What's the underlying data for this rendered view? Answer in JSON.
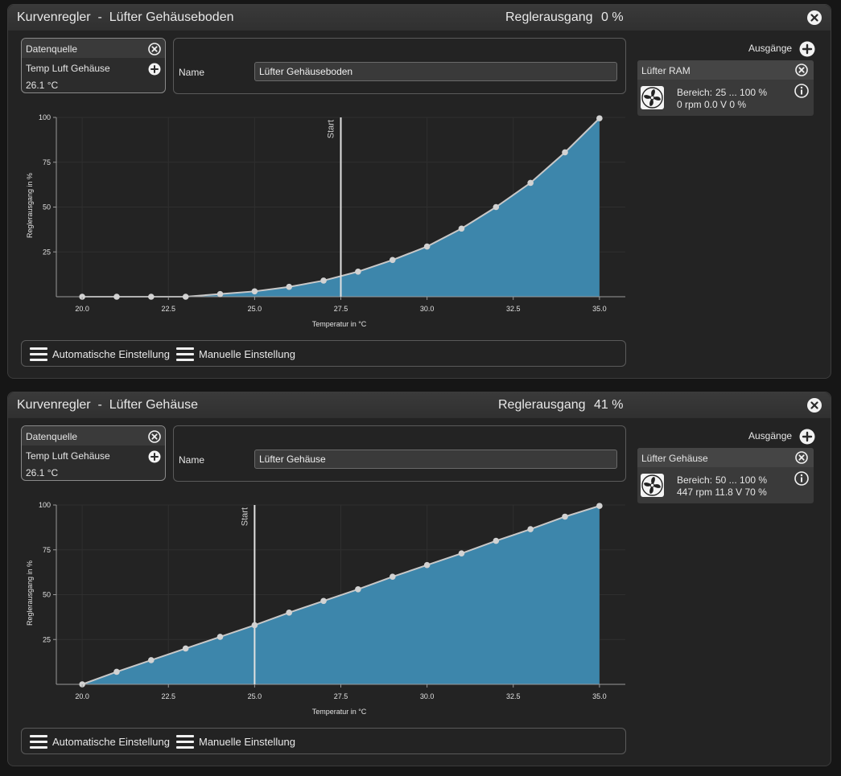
{
  "panels": [
    {
      "title": "Kurvenregler  -  Lüfter Gehäuseboden",
      "output_label": "Reglerausgang",
      "output_value": "0 %",
      "datasource": {
        "header": "Datenquelle",
        "sensor": "Temp Luft Gehäuse",
        "value": "26.1 °C"
      },
      "name_label": "Name",
      "name_value": "Lüfter Gehäuseboden",
      "outputs_label": "Ausgänge",
      "output_card": {
        "title": "Lüfter RAM",
        "range_label": "Bereich:",
        "range_value": "25 ... 100  %",
        "status": "0 rpm  0.0 V  0 %"
      },
      "buttons": {
        "auto": "Automatische Einstellung",
        "manual": "Manuelle Einstellung"
      },
      "chart_data": {
        "type": "area",
        "xlabel": "Temperatur in °C",
        "ylabel": "Reglerausgang in %",
        "xlim": [
          19.25,
          35.75
        ],
        "ylim": [
          0,
          100
        ],
        "x_ticks": [
          "20.0",
          "22.5",
          "25.0",
          "27.5",
          "30.0",
          "32.5",
          "35.0"
        ],
        "y_ticks": [
          "25",
          "50",
          "75",
          "100"
        ],
        "start_label": "Start",
        "start_x": 27.5,
        "x": [
          20,
          21,
          22,
          23,
          24,
          25,
          26,
          27,
          28,
          29,
          30,
          31,
          32,
          33,
          34,
          35
        ],
        "y": [
          0,
          0,
          0,
          0,
          1.5,
          3,
          5.5,
          9,
          14,
          20.5,
          28,
          38,
          50,
          63.5,
          80.5,
          99.5
        ],
        "fill_color": "#3d86ab",
        "line_color": "#c8c8c8"
      }
    },
    {
      "title": "Kurvenregler  -  Lüfter Gehäuse",
      "output_label": "Reglerausgang",
      "output_value": "41 %",
      "datasource": {
        "header": "Datenquelle",
        "sensor": "Temp Luft Gehäuse",
        "value": "26.1 °C"
      },
      "name_label": "Name",
      "name_value": "Lüfter Gehäuse",
      "outputs_label": "Ausgänge",
      "output_card": {
        "title": "Lüfter Gehäuse",
        "range_label": "Bereich:",
        "range_value": "50 ... 100  %",
        "status": "447 rpm  11.8 V  70 %"
      },
      "buttons": {
        "auto": "Automatische Einstellung",
        "manual": "Manuelle Einstellung"
      },
      "chart_data": {
        "type": "area",
        "xlabel": "Temperatur in °C",
        "ylabel": "Reglerausgang in %",
        "xlim": [
          19.25,
          35.75
        ],
        "ylim": [
          0,
          100
        ],
        "x_ticks": [
          "20.0",
          "22.5",
          "25.0",
          "27.5",
          "30.0",
          "32.5",
          "35.0"
        ],
        "y_ticks": [
          "25",
          "50",
          "75",
          "100"
        ],
        "start_label": "Start",
        "start_x": 25.0,
        "x": [
          20,
          21,
          22,
          23,
          24,
          25,
          26,
          27,
          28,
          29,
          30,
          31,
          32,
          33,
          34,
          35
        ],
        "y": [
          0,
          7,
          13.5,
          20,
          26.5,
          33,
          40,
          46.5,
          53,
          60,
          66.5,
          73,
          80,
          86.5,
          93.5,
          99.5
        ],
        "fill_color": "#3d86ab",
        "line_color": "#c8c8c8"
      }
    }
  ]
}
